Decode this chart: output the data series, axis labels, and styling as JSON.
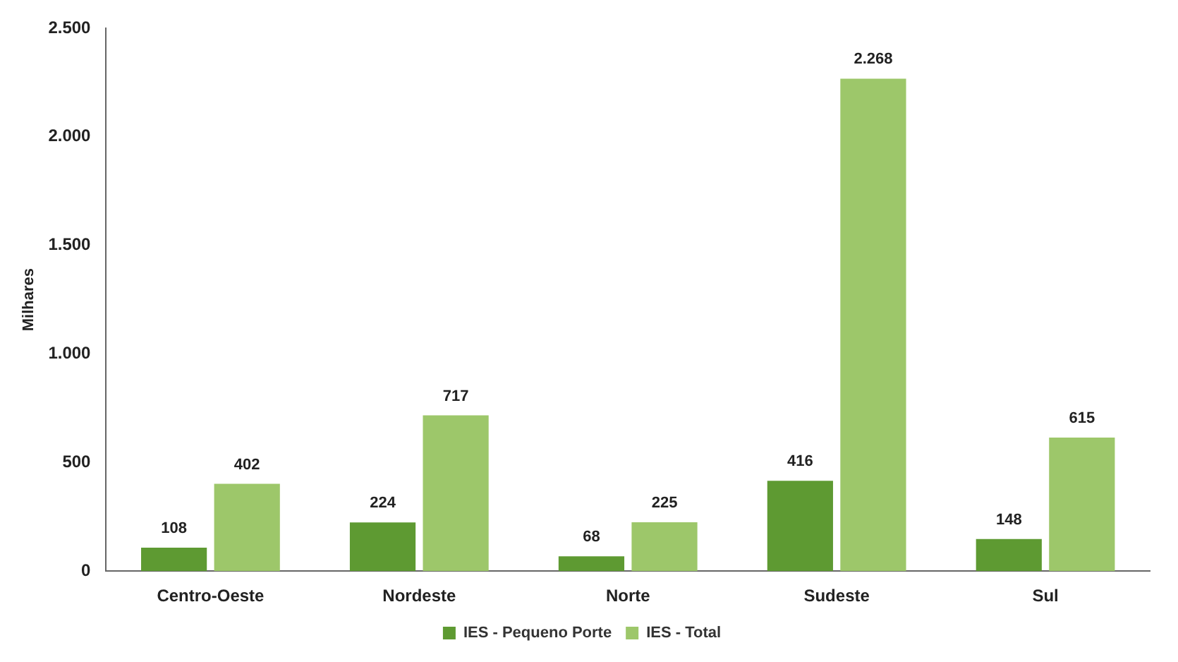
{
  "chart_data": {
    "type": "bar",
    "ylabel": "Milhares",
    "categories": [
      "Centro-Oeste",
      "Nordeste",
      "Norte",
      "Sudeste",
      "Sul"
    ],
    "series": [
      {
        "name": "IES - Pequeno Porte",
        "color": "#5e9a32",
        "values": [
          108,
          224,
          68,
          416,
          148
        ],
        "value_labels": [
          "108",
          "224",
          "68",
          "416",
          "148"
        ]
      },
      {
        "name": "IES - Total",
        "color": "#9dc76a",
        "values": [
          402,
          717,
          225,
          2268,
          615
        ],
        "value_labels": [
          "402",
          "717",
          "225",
          "2.268",
          "615"
        ]
      }
    ],
    "ylim": [
      0,
      2500
    ],
    "yticks": [
      0,
      {
        "value": 500,
        "label": "500"
      },
      {
        "value": 1000,
        "label": "1.000"
      },
      {
        "value": 1500,
        "label": "1.500"
      },
      {
        "value": 2000,
        "label": "2.000"
      },
      {
        "value": 2500,
        "label": "2.500"
      }
    ],
    "grid": false,
    "legend": "bottom"
  }
}
